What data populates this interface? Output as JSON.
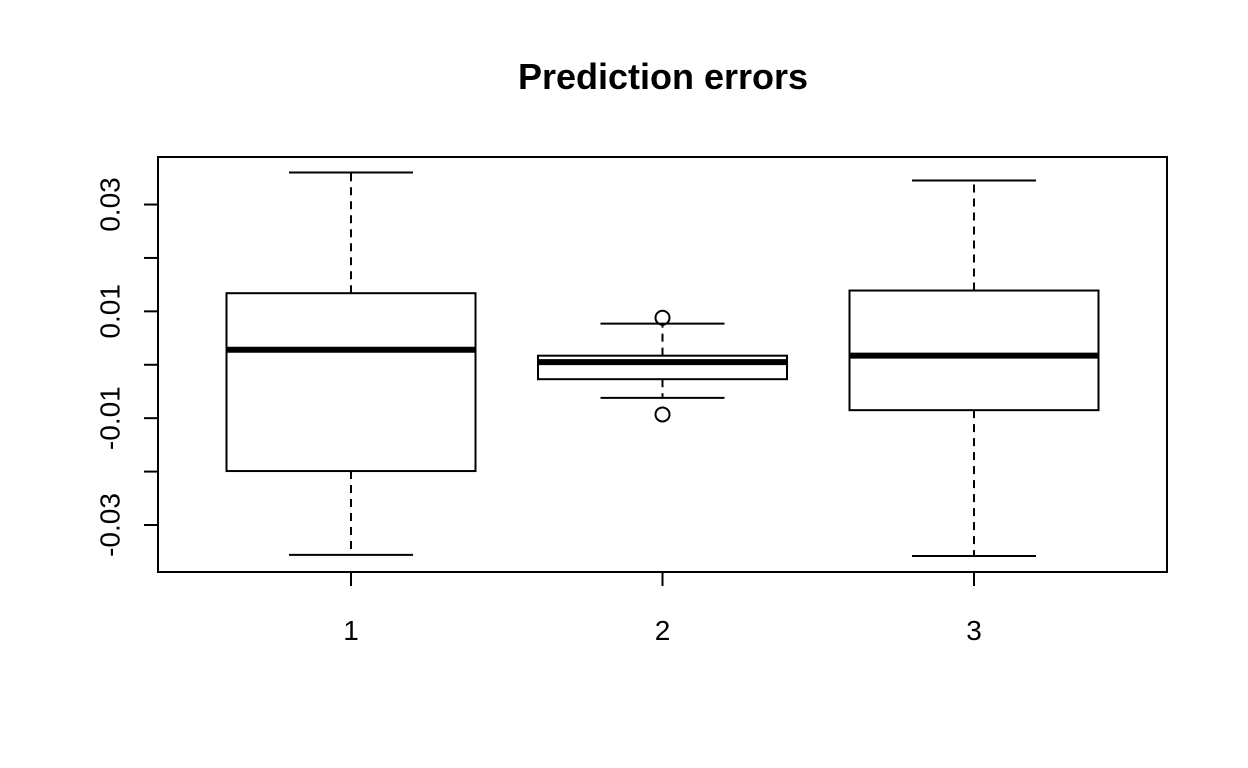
{
  "chart_data": {
    "type": "boxplot",
    "title": "Prediction errors",
    "xlabel": "",
    "ylabel": "",
    "categories": [
      "1",
      "2",
      "3"
    ],
    "y_ticks": [
      -0.03,
      -0.02,
      -0.01,
      0.0,
      0.01,
      0.02,
      0.03
    ],
    "y_tick_labels": [
      "-0.03",
      "",
      "-0.01",
      "",
      "0.01",
      "",
      "0.03"
    ],
    "ylim": [
      -0.0388,
      0.0389
    ],
    "boxes": [
      {
        "name": "1",
        "whisker_low": -0.0356,
        "q1": -0.0199,
        "median": 0.0028,
        "q3": 0.0134,
        "whisker_high": 0.036,
        "outliers": []
      },
      {
        "name": "2",
        "whisker_low": -0.0062,
        "q1": -0.0027,
        "median": 0.0005,
        "q3": 0.0017,
        "whisker_high": 0.0077,
        "outliers": [
          0.0088,
          -0.0093
        ]
      },
      {
        "name": "3",
        "whisker_low": -0.0358,
        "q1": -0.0085,
        "median": 0.0017,
        "q3": 0.0139,
        "whisker_high": 0.0345,
        "outliers": []
      }
    ],
    "grid": false,
    "legend": "none"
  }
}
